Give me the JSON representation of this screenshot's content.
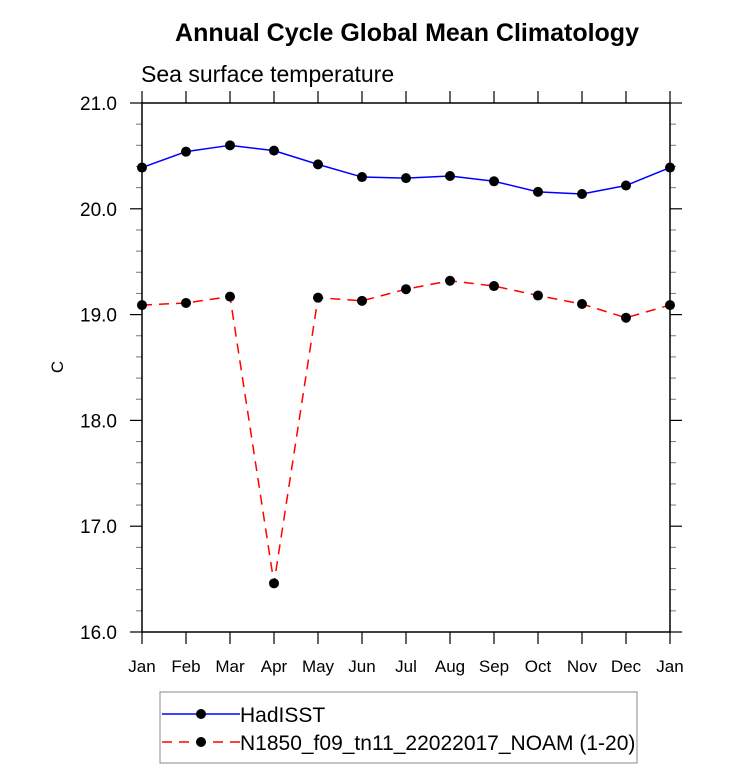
{
  "chart_data": {
    "type": "line",
    "title": "Annual Cycle Global Mean Climatology",
    "subtitle": "Sea surface temperature",
    "xlabel": "",
    "ylabel": "C",
    "categories": [
      "Jan",
      "Feb",
      "Mar",
      "Apr",
      "May",
      "Jun",
      "Jul",
      "Aug",
      "Sep",
      "Oct",
      "Nov",
      "Dec",
      "Jan"
    ],
    "ylim": [
      16.0,
      21.0
    ],
    "yticks": [
      16.0,
      17.0,
      18.0,
      19.0,
      20.0,
      21.0
    ],
    "ytick_labels": [
      "16.0",
      "17.0",
      "18.0",
      "19.0",
      "20.0",
      "21.0"
    ],
    "y_minor_step": 0.2,
    "grid": false,
    "legend_position": "bottom",
    "series": [
      {
        "name": "HadISST",
        "color": "#0000ff",
        "line_style": "solid",
        "marker": "filled-circle",
        "marker_color": "#000000",
        "values": [
          20.39,
          20.54,
          20.6,
          20.55,
          20.42,
          20.3,
          20.29,
          20.31,
          20.26,
          20.16,
          20.14,
          20.22,
          20.39
        ]
      },
      {
        "name": "N1850_f09_tn11_22022017_NOAM (1-20)",
        "color": "#ff0000",
        "line_style": "dashed",
        "marker": "filled-circle",
        "marker_color": "#000000",
        "values": [
          19.09,
          19.11,
          19.17,
          16.46,
          19.16,
          19.13,
          19.24,
          19.32,
          19.27,
          19.18,
          19.1,
          18.97,
          19.09
        ]
      }
    ]
  }
}
